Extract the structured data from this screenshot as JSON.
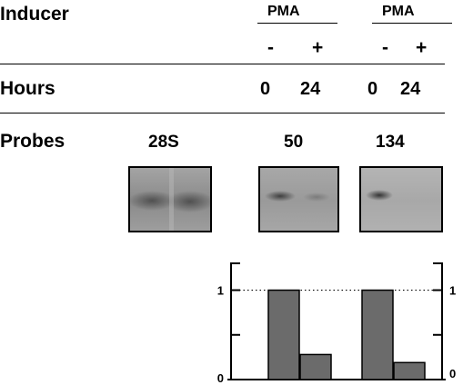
{
  "rows": {
    "inducer_label": "Inducer",
    "hours_label": "Hours",
    "probes_label": "Probes"
  },
  "groups": [
    {
      "name": "PMA",
      "treatments": [
        "-",
        "+"
      ],
      "hours": [
        "0",
        "24"
      ],
      "probe": "50"
    },
    {
      "name": "PMA",
      "treatments": [
        "-",
        "+"
      ],
      "hours": [
        "0",
        "24"
      ],
      "probe": "134"
    }
  ],
  "control_probe": "28S",
  "chart_data": {
    "type": "bar",
    "categories": [
      "50 -",
      "50 +",
      "134 -",
      "134 +"
    ],
    "values": [
      1.0,
      0.28,
      1.0,
      0.19
    ],
    "bar_color": "#6b6b6b",
    "ylim": [
      0,
      1.3
    ],
    "yticks": [
      0,
      1
    ],
    "reference_line": 1,
    "left_tick_labels": [
      "0",
      "1"
    ],
    "right_tick_labels": [
      "0",
      "1"
    ]
  }
}
